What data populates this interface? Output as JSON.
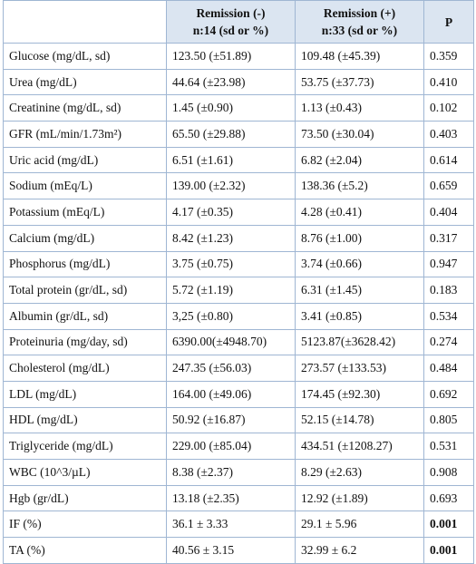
{
  "table": {
    "header": [
      [
        "Remission (-)",
        "n:14 (sd or %)"
      ],
      [
        "Remission (+)",
        "n:33 (sd or %)"
      ],
      [
        "P"
      ]
    ],
    "rows": [
      [
        "Glucose (mg/dL, sd)",
        "123.50 (±51.89)",
        "109.48 (±45.39)",
        "0.359"
      ],
      [
        "Urea (mg/dL)",
        "44.64 (±23.98)",
        "53.75 (±37.73)",
        "0.410"
      ],
      [
        "Creatinine (mg/dL, sd)",
        "1.45 (±0.90)",
        "1.13 (±0.43)",
        "0.102"
      ],
      [
        "GFR (mL/min/1.73m²)",
        "65.50 (±29.88)",
        "73.50 (±30.04)",
        "0.403"
      ],
      [
        "Uric acid (mg/dL)",
        "6.51 (±1.61)",
        "6.82 (±2.04)",
        "0.614"
      ],
      [
        "Sodium (mEq/L)",
        "139.00 (±2.32)",
        "138.36 (±5.2)",
        "0.659"
      ],
      [
        "Potassium (mEq/L)",
        "4.17 (±0.35)",
        "4.28 (±0.41)",
        "0.404"
      ],
      [
        "Calcium (mg/dL)",
        "8.42 (±1.23)",
        "8.76 (±1.00)",
        "0.317"
      ],
      [
        "Phosphorus (mg/dL)",
        "3.75 (±0.75)",
        "3.74 (±0.66)",
        "0.947"
      ],
      [
        "Total protein (gr/dL, sd)",
        "5.72 (±1.19)",
        "6.31 (±1.45)",
        "0.183"
      ],
      [
        "Albumin (gr/dL, sd)",
        "3,25 (±0.80)",
        "3.41 (±0.85)",
        "0.534"
      ],
      [
        "Proteinuria (mg/day, sd)",
        "6390.00(±4948.70)",
        "5123.87(±3628.42)",
        "0.274"
      ],
      [
        "Cholesterol (mg/dL)",
        "247.35 (±56.03)",
        "273.57 (±133.53)",
        "0.484"
      ],
      [
        "LDL (mg/dL)",
        "164.00 (±49.06)",
        "174.45 (±92.30)",
        "0.692"
      ],
      [
        "HDL (mg/dL)",
        "50.92 (±16.87)",
        "52.15 (±14.78)",
        "0.805"
      ],
      [
        "Triglyceride (mg/dL)",
        "229.00 (±85.04)",
        "434.51 (±1208.27)",
        "0.531"
      ],
      [
        "WBC (10^3/µL)",
        "8.38 (±2.37)",
        "8.29 (±2.63)",
        "0.908"
      ],
      [
        "Hgb (gr/dL)",
        "13.18 (±2.35)",
        "12.92 (±1.89)",
        "0.693"
      ],
      [
        "IF (%)",
        "36.1 ± 3.33",
        "29.1 ± 5.96",
        "0.001"
      ],
      [
        "TA (%)",
        "40.56 ± 3.15",
        "32.99 ± 6.2",
        "0.001"
      ]
    ]
  }
}
